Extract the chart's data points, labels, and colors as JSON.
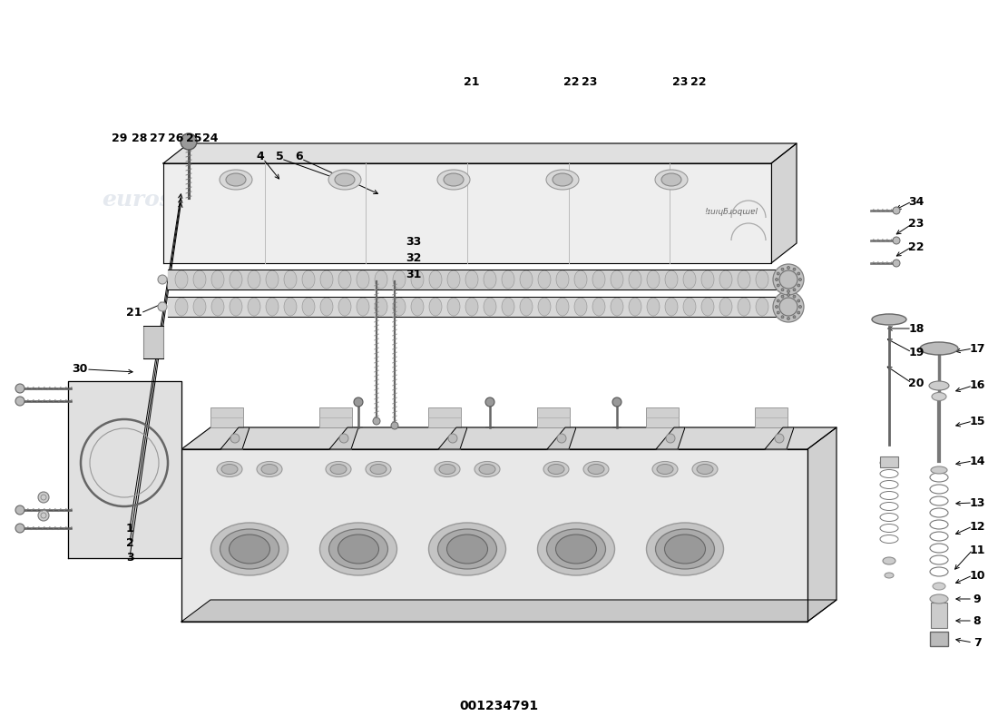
{
  "title": "001234791",
  "background_color": "#ffffff",
  "line_color": "#000000",
  "watermark_color": "#ccd5e0",
  "label_data": [
    [
      "1",
      143,
      218
    ],
    [
      "2",
      143,
      202
    ],
    [
      "3",
      143,
      186
    ],
    [
      "4",
      287,
      628
    ],
    [
      "5",
      308,
      628
    ],
    [
      "6",
      330,
      628
    ],
    [
      "7",
      1077,
      92
    ],
    [
      "8",
      1077,
      116
    ],
    [
      "9",
      1077,
      140
    ],
    [
      "10",
      1077,
      166
    ],
    [
      "11",
      1077,
      194
    ],
    [
      "12",
      1077,
      220
    ],
    [
      "13",
      1077,
      246
    ],
    [
      "14",
      1077,
      292
    ],
    [
      "15",
      1077,
      336
    ],
    [
      "16",
      1077,
      375
    ],
    [
      "17",
      1077,
      416
    ],
    [
      "18",
      1010,
      438
    ],
    [
      "19",
      1010,
      412
    ],
    [
      "20",
      1010,
      378
    ],
    [
      "21",
      148,
      455
    ],
    [
      "22",
      1010,
      528
    ],
    [
      "23",
      1010,
      553
    ],
    [
      "24",
      232,
      648
    ],
    [
      "25",
      214,
      648
    ],
    [
      "26",
      194,
      648
    ],
    [
      "27",
      174,
      648
    ],
    [
      "28",
      154,
      648
    ],
    [
      "29",
      132,
      648
    ],
    [
      "30",
      88,
      393
    ],
    [
      "31",
      456,
      498
    ],
    [
      "32",
      456,
      516
    ],
    [
      "33",
      456,
      534
    ],
    [
      "34",
      1010,
      578
    ],
    [
      "21",
      520,
      710
    ],
    [
      "22",
      630,
      710
    ],
    [
      "23",
      650,
      710
    ],
    [
      "23",
      750,
      710
    ],
    [
      "22",
      770,
      710
    ]
  ]
}
